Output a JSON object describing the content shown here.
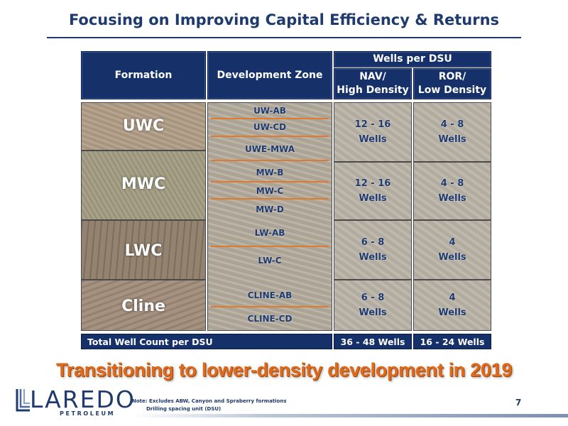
{
  "title": "Focusing on Improving Capital Efficiency & Returns",
  "table": {
    "headers": {
      "formation": "Formation",
      "development_zone": "Development Zone",
      "wells_per_dsu": "Wells per DSU",
      "nav_line1": "NAV/",
      "nav_line2": "High Density",
      "ror_line1": "ROR/",
      "ror_line2": "Low Density"
    },
    "formations": [
      {
        "name": "UWC",
        "zones": [
          "UW-AB",
          "UW-CD",
          "UWE-MWA"
        ],
        "nav": [
          "12 - 16",
          "Wells"
        ],
        "ror": [
          "4 - 8",
          "Wells"
        ]
      },
      {
        "name": "MWC",
        "zones": [
          "MW-B",
          "MW-C",
          "MW-D"
        ],
        "nav": [
          "12 - 16",
          "Wells"
        ],
        "ror": [
          "4 - 8",
          "Wells"
        ]
      },
      {
        "name": "LWC",
        "zones": [
          "LW-AB",
          "LW-C"
        ],
        "nav": [
          "6 - 8",
          "Wells"
        ],
        "ror": [
          "4",
          "Wells"
        ]
      },
      {
        "name": "Cline",
        "zones": [
          "CLINE-AB",
          "CLINE-CD"
        ],
        "nav": [
          "6 - 8",
          "Wells"
        ],
        "ror": [
          "4",
          "Wells"
        ]
      }
    ],
    "total": {
      "label": "Total Well Count per DSU",
      "nav": "36 - 48 Wells",
      "ror": "16 - 24 Wells"
    }
  },
  "tagline": "Transitioning to lower-density development in 2019",
  "logo": {
    "word": "LAREDO",
    "sub": "PETROLEUM"
  },
  "note": {
    "line1": "Note: Excludes ABW, Canyon and Spraberry formations",
    "line2": "Drilling spacing unit (DSU)"
  },
  "page_number": "7",
  "colors": {
    "navy": "#1f3a6e",
    "header_fill": "#16306a",
    "orange": "#e06a1c",
    "zone_line": "#e07a2e"
  }
}
